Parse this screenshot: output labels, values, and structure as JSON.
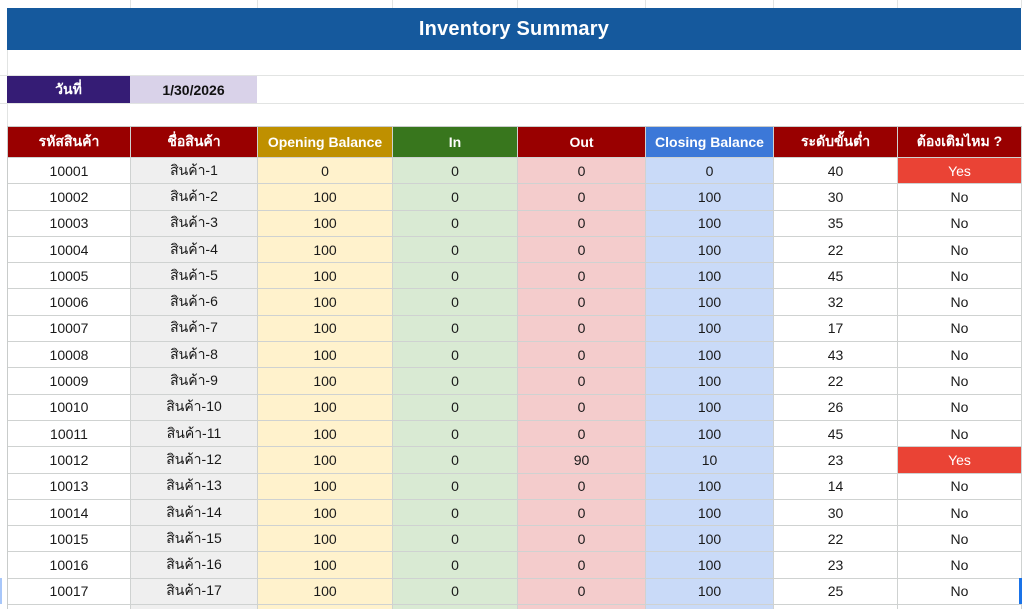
{
  "banner": {
    "title": "Inventory Summary",
    "bg": "#15599d"
  },
  "date": {
    "label": "วันที่",
    "value": "1/30/2026",
    "label_bg": "#351c75",
    "value_bg": "#d9d2e9"
  },
  "colors": {
    "header_dark_red": "#990000",
    "header_gold": "#bf9000",
    "header_green": "#38761d",
    "header_blue": "#3c78d8",
    "alert_red": "#ea4335"
  },
  "table": {
    "column_keys": [
      "code",
      "name",
      "opening",
      "in",
      "out",
      "closing",
      "min_level",
      "refill"
    ],
    "columns": [
      {
        "key": "code",
        "label": "รหัสสินค้า",
        "header_bg": "#990000",
        "cell_bg": "#ffffff"
      },
      {
        "key": "name",
        "label": "ชื่อสินค้า",
        "header_bg": "#990000",
        "cell_bg": "#efefef"
      },
      {
        "key": "opening",
        "label": "Opening Balance",
        "header_bg": "#bf9000",
        "cell_bg": "#fff2cc"
      },
      {
        "key": "in",
        "label": "In",
        "header_bg": "#38761d",
        "cell_bg": "#d9ead3"
      },
      {
        "key": "out",
        "label": "Out",
        "header_bg": "#990000",
        "cell_bg": "#f4cccc"
      },
      {
        "key": "closing",
        "label": "Closing Balance",
        "header_bg": "#3c78d8",
        "cell_bg": "#c9daf8"
      },
      {
        "key": "min_level",
        "label": "ระดับขั้นต่ำ",
        "header_bg": "#990000",
        "cell_bg": "#ffffff"
      },
      {
        "key": "refill",
        "label": "ต้องเติมไหม ?",
        "header_bg": "#990000",
        "cell_bg": "#ffffff"
      }
    ],
    "refill_alert": {
      "value": "Yes",
      "bg": "#ea4335",
      "text_color": "#ffffff"
    },
    "rows": [
      {
        "code": "10001",
        "name": "สินค้า-1",
        "opening": "0",
        "in": "0",
        "out": "0",
        "closing": "0",
        "min_level": "40",
        "refill": "Yes"
      },
      {
        "code": "10002",
        "name": "สินค้า-2",
        "opening": "100",
        "in": "0",
        "out": "0",
        "closing": "100",
        "min_level": "30",
        "refill": "No"
      },
      {
        "code": "10003",
        "name": "สินค้า-3",
        "opening": "100",
        "in": "0",
        "out": "0",
        "closing": "100",
        "min_level": "35",
        "refill": "No"
      },
      {
        "code": "10004",
        "name": "สินค้า-4",
        "opening": "100",
        "in": "0",
        "out": "0",
        "closing": "100",
        "min_level": "22",
        "refill": "No"
      },
      {
        "code": "10005",
        "name": "สินค้า-5",
        "opening": "100",
        "in": "0",
        "out": "0",
        "closing": "100",
        "min_level": "45",
        "refill": "No"
      },
      {
        "code": "10006",
        "name": "สินค้า-6",
        "opening": "100",
        "in": "0",
        "out": "0",
        "closing": "100",
        "min_level": "32",
        "refill": "No"
      },
      {
        "code": "10007",
        "name": "สินค้า-7",
        "opening": "100",
        "in": "0",
        "out": "0",
        "closing": "100",
        "min_level": "17",
        "refill": "No"
      },
      {
        "code": "10008",
        "name": "สินค้า-8",
        "opening": "100",
        "in": "0",
        "out": "0",
        "closing": "100",
        "min_level": "43",
        "refill": "No"
      },
      {
        "code": "10009",
        "name": "สินค้า-9",
        "opening": "100",
        "in": "0",
        "out": "0",
        "closing": "100",
        "min_level": "22",
        "refill": "No"
      },
      {
        "code": "10010",
        "name": "สินค้า-10",
        "opening": "100",
        "in": "0",
        "out": "0",
        "closing": "100",
        "min_level": "26",
        "refill": "No"
      },
      {
        "code": "10011",
        "name": "สินค้า-11",
        "opening": "100",
        "in": "0",
        "out": "0",
        "closing": "100",
        "min_level": "45",
        "refill": "No"
      },
      {
        "code": "10012",
        "name": "สินค้า-12",
        "opening": "100",
        "in": "0",
        "out": "90",
        "closing": "10",
        "min_level": "23",
        "refill": "Yes"
      },
      {
        "code": "10013",
        "name": "สินค้า-13",
        "opening": "100",
        "in": "0",
        "out": "0",
        "closing": "100",
        "min_level": "14",
        "refill": "No"
      },
      {
        "code": "10014",
        "name": "สินค้า-14",
        "opening": "100",
        "in": "0",
        "out": "0",
        "closing": "100",
        "min_level": "30",
        "refill": "No"
      },
      {
        "code": "10015",
        "name": "สินค้า-15",
        "opening": "100",
        "in": "0",
        "out": "0",
        "closing": "100",
        "min_level": "22",
        "refill": "No"
      },
      {
        "code": "10016",
        "name": "สินค้า-16",
        "opening": "100",
        "in": "0",
        "out": "0",
        "closing": "100",
        "min_level": "23",
        "refill": "No"
      },
      {
        "code": "10017",
        "name": "สินค้า-17",
        "opening": "100",
        "in": "0",
        "out": "0",
        "closing": "100",
        "min_level": "25",
        "refill": "No"
      }
    ]
  }
}
